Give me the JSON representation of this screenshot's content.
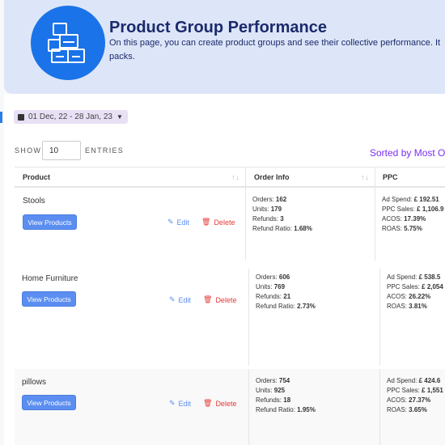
{
  "header": {
    "title": "Product Group Performance",
    "description_line1": "On this page, you can create product groups and see their collective performance. It",
    "description_line2": "packs.",
    "icon": "boxes-icon",
    "accent": "#1a73e8"
  },
  "date_range": {
    "label": "01 Dec, 22 - 28 Jan, 23"
  },
  "table_controls": {
    "show_label": "SHOW",
    "entries_value": "10",
    "entries_label": "ENTRIES",
    "sorted_label": "Sorted by Most O"
  },
  "columns": {
    "product": "Product",
    "order_info": "Order Info",
    "ppc": "PPC"
  },
  "rows": [
    {
      "name": "Stools",
      "view_label": "View Products",
      "edit_label": "Edit",
      "delete_label": "Delete",
      "orders_label": "Orders:",
      "orders": "162",
      "units_label": "Units:",
      "units": "179",
      "refunds_label": "Refunds:",
      "refunds": "3",
      "ratio_label": "Refund Ratio:",
      "ratio": "1.68%",
      "ad_spend_label": "Ad Spend:",
      "ad_spend": "£ 192.51",
      "ppc_sales_label": "PPC Sales:",
      "ppc_sales": "£ 1,106.9",
      "acos_label": "ACOS:",
      "acos": "17.39%",
      "roas_label": "ROAS:",
      "roas": "5.75%"
    },
    {
      "name": "Home Furniture",
      "view_label": "View Products",
      "edit_label": "Edit",
      "delete_label": "Delete",
      "orders_label": "Orders:",
      "orders": "606",
      "units_label": "Units:",
      "units": "769",
      "refunds_label": "Refunds:",
      "refunds": "21",
      "ratio_label": "Refund Ratio:",
      "ratio": "2.73%",
      "ad_spend_label": "Ad Spend:",
      "ad_spend": "£ 538.5",
      "ppc_sales_label": "PPC Sales:",
      "ppc_sales": "£ 2,054",
      "acos_label": "ACOS:",
      "acos": "26.22%",
      "roas_label": "ROAS:",
      "roas": "3.81%"
    },
    {
      "name": "pillows",
      "view_label": "View Products",
      "edit_label": "Edit",
      "delete_label": "Delete",
      "orders_label": "Orders:",
      "orders": "754",
      "units_label": "Units:",
      "units": "925",
      "refunds_label": "Refunds:",
      "refunds": "18",
      "ratio_label": "Refund Ratio:",
      "ratio": "1.95%",
      "ad_spend_label": "Ad Spend:",
      "ad_spend": "£ 424.6",
      "ppc_sales_label": "PPC Sales:",
      "ppc_sales": "£ 1,551",
      "acos_label": "ACOS:",
      "acos": "27.37%",
      "roas_label": "ROAS:",
      "roas": "3.65%"
    }
  ]
}
